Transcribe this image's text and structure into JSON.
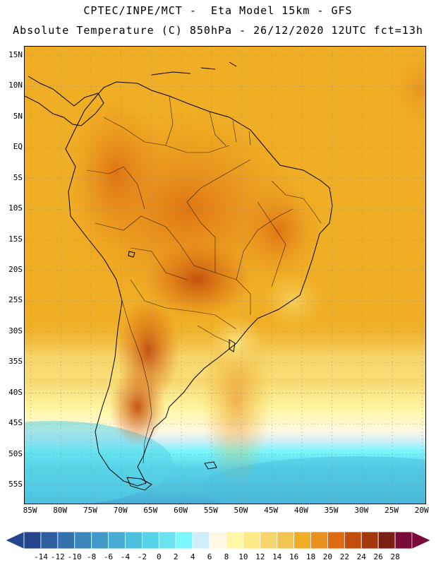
{
  "header": {
    "line1": "CPTEC/INPE/MCT -  Eta Model 15km - GFS",
    "line2": "Absolute Temperature (C) 850hPa - 26/12/2020 12UTC fct=13h"
  },
  "map": {
    "lat_labels": [
      "15N",
      "10N",
      "5N",
      "EQ",
      "5S",
      "10S",
      "15S",
      "20S",
      "25S",
      "30S",
      "35S",
      "40S",
      "45S",
      "50S",
      "55S"
    ],
    "lon_labels": [
      "85W",
      "80W",
      "75W",
      "70W",
      "65W",
      "60W",
      "55W",
      "50W",
      "45W",
      "40W",
      "35W",
      "30W",
      "25W",
      "20W"
    ],
    "lat_range": [
      -58,
      16.5
    ],
    "lon_range": [
      -86,
      -19.5
    ]
  },
  "colorbar": {
    "tick_labels": [
      "-14",
      "-12",
      "-10",
      "-8",
      "-6",
      "-4",
      "-2",
      "0",
      "2",
      "4",
      "6",
      "8",
      "10",
      "12",
      "14",
      "16",
      "18",
      "20",
      "22",
      "24",
      "26",
      "28"
    ],
    "colors": [
      "#25468f",
      "#2c5ea0",
      "#3470b0",
      "#3d85bd",
      "#4299c8",
      "#47abd3",
      "#4cc0dd",
      "#57d3e8",
      "#69e3f0",
      "#7cf7fb",
      "#cfeef8",
      "#fff8e4",
      "#fff7a5",
      "#fbe986",
      "#f6d66c",
      "#f1c550",
      "#f0ae24",
      "#e9901e",
      "#dd6a11",
      "#c34d0d",
      "#a4370c",
      "#7c1f12",
      "#7a0a3a"
    ]
  }
}
